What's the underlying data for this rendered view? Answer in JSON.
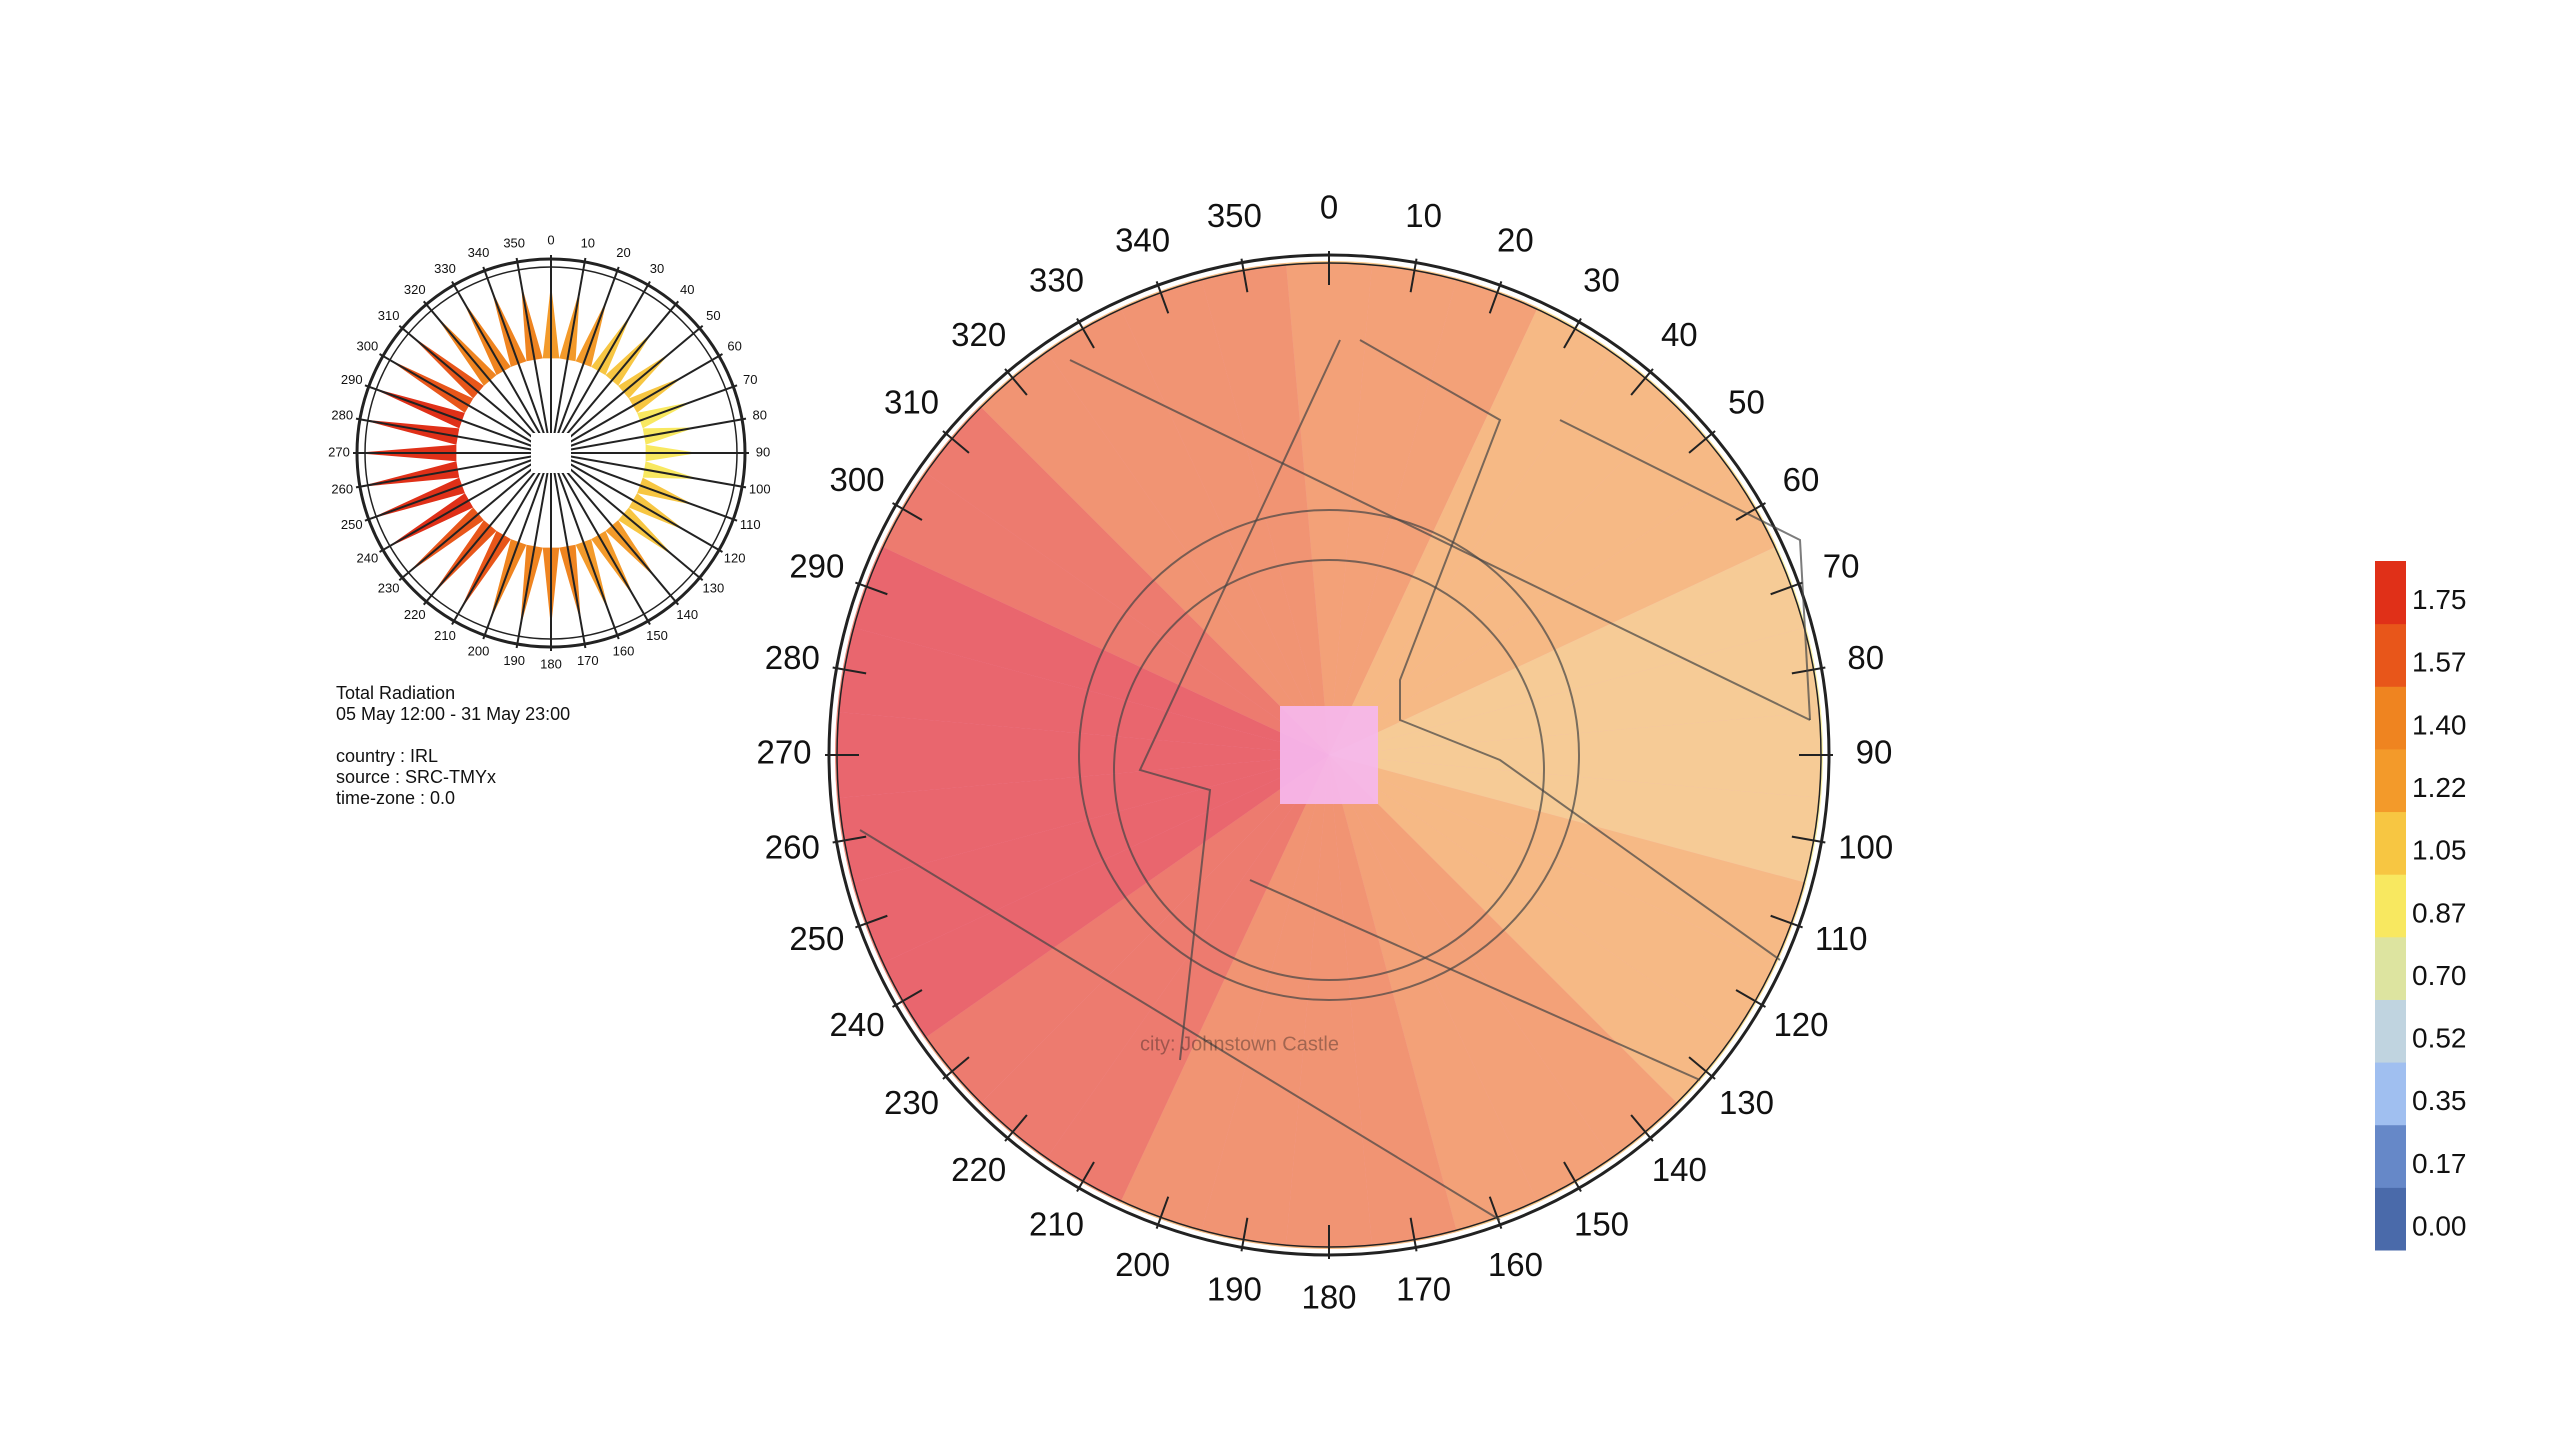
{
  "rose_values": [
    1.35,
    1.3,
    1.25,
    1.2,
    1.15,
    1.1,
    1.05,
    1.0,
    0.95,
    0.95,
    1.0,
    1.05,
    1.1,
    1.2,
    1.25,
    1.3,
    1.35,
    1.4,
    1.45,
    1.5,
    1.55,
    1.6,
    1.65,
    1.7,
    1.75,
    1.8,
    1.85,
    1.85,
    1.8,
    1.75,
    1.7,
    1.6,
    1.55,
    1.5,
    1.45,
    1.4
  ],
  "angle_labels": [
    0,
    10,
    20,
    30,
    40,
    50,
    60,
    70,
    80,
    90,
    100,
    110,
    120,
    130,
    140,
    150,
    160,
    170,
    180,
    190,
    200,
    210,
    220,
    230,
    240,
    250,
    260,
    270,
    280,
    290,
    300,
    310,
    320,
    330,
    340,
    350
  ],
  "info": {
    "title": "Total Radiation",
    "period": "05 May 12:00 - 31 May 23:00",
    "country": "country : IRL",
    "source": "source : SRC-TMYx",
    "time_zone": "time-zone : 0.0"
  },
  "watermark": "city: Johnstown Castle",
  "legend": {
    "ticks": [
      {
        "value": 0,
        "label": "0.00"
      },
      {
        "value": 0.17,
        "label": "0.17"
      },
      {
        "value": 0.35,
        "label": "0.35"
      },
      {
        "value": 0.52,
        "label": "0.52"
      },
      {
        "value": 0.7,
        "label": "0.70"
      },
      {
        "value": 0.87,
        "label": "0.87"
      },
      {
        "value": 1.05,
        "label": "1.05"
      },
      {
        "value": 1.22,
        "label": "1.22"
      },
      {
        "value": 1.4,
        "label": "1.40"
      },
      {
        "value": 1.57,
        "label": "1.57"
      },
      {
        "value": 1.75,
        "label": "1.75"
      }
    ],
    "colors": [
      "#4a6aaa",
      "#6688c8",
      "#a0bff0",
      "#c0d4e0",
      "#dde4a0",
      "#f8e860",
      "#f7c642",
      "#f39a2a",
      "#ef8420",
      "#e8561a",
      "#e03018"
    ]
  }
}
